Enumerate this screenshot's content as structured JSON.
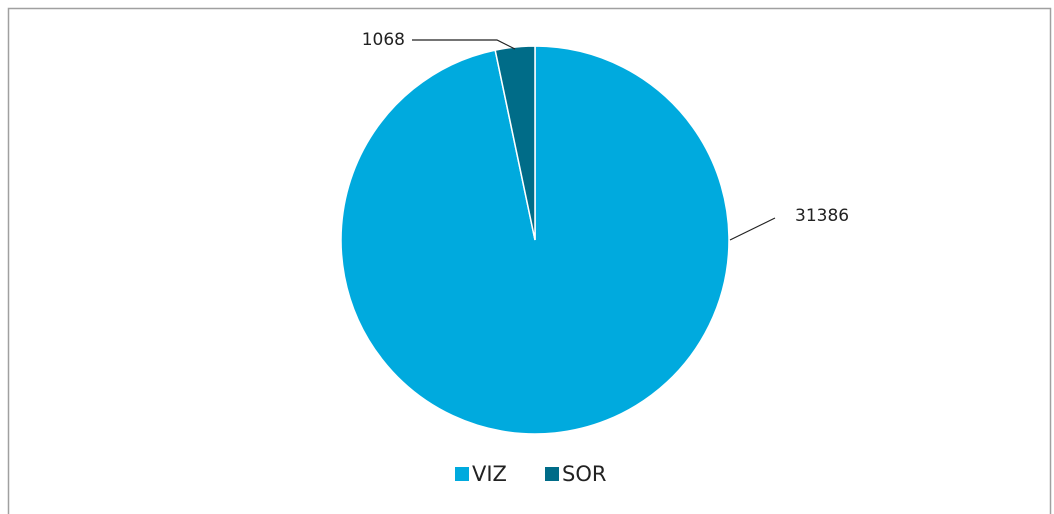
{
  "chart_data": {
    "type": "pie",
    "categories": [
      "VIZ",
      "SOR"
    ],
    "values": [
      31386,
      1068
    ],
    "colors": [
      "#00aade",
      "#006c88"
    ],
    "legend": "bottom"
  }
}
